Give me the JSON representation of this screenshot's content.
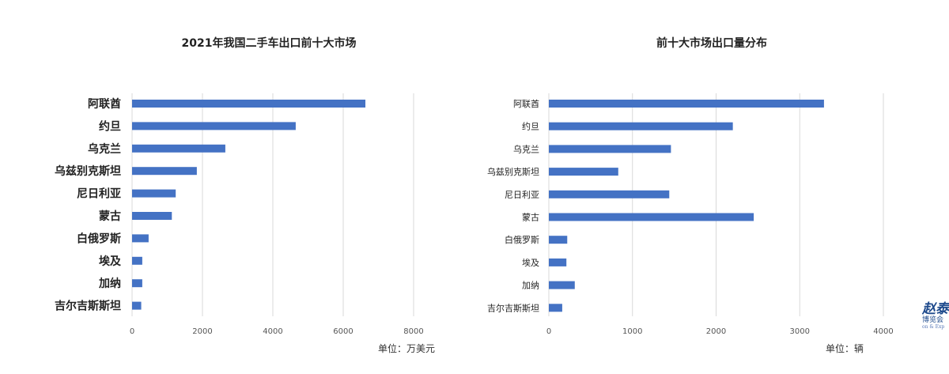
{
  "chart_data": [
    {
      "type": "bar",
      "orientation": "horizontal",
      "title": "2021年我国二手车出口前十大市场",
      "unit_label": "单位：万美元",
      "categories": [
        "阿联酋",
        "约旦",
        "乌克兰",
        "乌兹别克斯坦",
        "尼日利亚",
        "蒙古",
        "白俄罗斯",
        "埃及",
        "加纳",
        "吉尔吉斯斯坦"
      ],
      "values": [
        6630,
        4650,
        2650,
        1840,
        1240,
        1130,
        470,
        290,
        290,
        260
      ],
      "xlim": [
        0,
        8000
      ],
      "xticks": [
        "0",
        "2000",
        "4000",
        "6000",
        "8000"
      ],
      "grid": true,
      "color": "#4472c4"
    },
    {
      "type": "bar",
      "orientation": "horizontal",
      "title": "前十大市场出口量分布",
      "unit_label": "单位：辆",
      "categories": [
        "阿联酋",
        "约旦",
        "乌克兰",
        "乌兹别克斯坦",
        "尼日利亚",
        "蒙古",
        "白俄罗斯",
        "埃及",
        "加纳",
        "吉尔吉斯斯坦"
      ],
      "values": [
        3290,
        2200,
        1460,
        830,
        1440,
        2450,
        220,
        210,
        310,
        160
      ],
      "xlim": [
        0,
        4000
      ],
      "xticks": [
        "0",
        "1000",
        "2000",
        "3000",
        "4000"
      ],
      "grid": true,
      "color": "#4472c4"
    }
  ],
  "watermark": {
    "mark": "赵泰",
    "text": "博览会",
    "sub": "on & Exp"
  }
}
